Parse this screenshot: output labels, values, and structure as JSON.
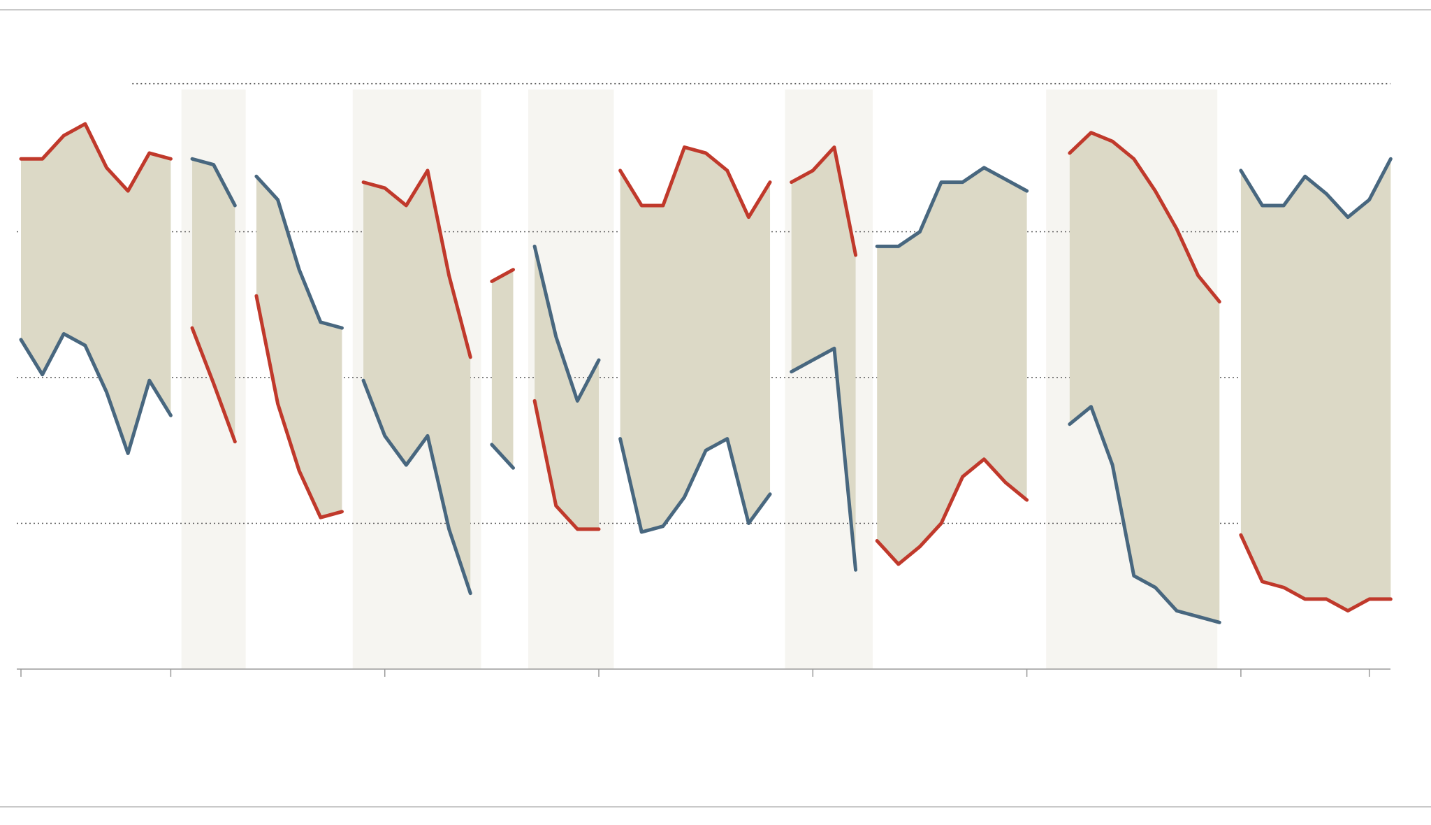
{
  "chart_data": {
    "type": "line",
    "grid": true,
    "ylim": [
      0,
      100
    ],
    "xlim": [
      0,
      64.5
    ],
    "gridlines_y": [
      25,
      50,
      75
    ],
    "top_gridline": {
      "y": 100.4,
      "x_from": 5.2
    },
    "x_ticks": [
      0,
      7,
      17,
      27,
      37,
      47,
      57,
      63
    ],
    "colors": {
      "red": "#c0392b",
      "blue": "#48677f",
      "fill": "#dcd9c6",
      "band": "#f6f5f1"
    },
    "shaded_bands": [
      [
        7.5,
        10.5
      ],
      [
        15.5,
        21.5
      ],
      [
        23.7,
        27.7
      ],
      [
        35.7,
        39.8
      ],
      [
        47.9,
        55.9
      ]
    ],
    "segments": [
      {
        "x_start": 0,
        "red": [
          87.5,
          87.5,
          91.5,
          93.5,
          86,
          82,
          88.5,
          87.5
        ],
        "blue": [
          56.5,
          50.5,
          57.5,
          55.5,
          47.5,
          37,
          49.5,
          43.5
        ]
      },
      {
        "x_start": 8,
        "red": [
          58.5,
          49,
          39
        ],
        "blue": [
          87.5,
          86.5,
          79.5
        ]
      },
      {
        "x_start": 11,
        "red": [
          64,
          45.5,
          34,
          26,
          27
        ],
        "blue": [
          84.5,
          80.5,
          68.5,
          59.5,
          58.5
        ]
      },
      {
        "x_start": 16,
        "red": [
          83.5,
          82.5,
          79.5,
          85.5,
          67.5,
          53.5
        ],
        "blue": [
          49.5,
          40,
          35,
          40,
          24,
          13
        ]
      },
      {
        "x_start": 22,
        "red": [
          66.5,
          68.5
        ],
        "blue": [
          38.5,
          34.5
        ]
      },
      {
        "x_start": 24,
        "red": [
          46,
          28,
          24,
          24
        ],
        "blue": [
          72.5,
          57,
          46,
          53
        ]
      },
      {
        "x_start": 28,
        "red": [
          85.5,
          79.5,
          79.5,
          89.5,
          88.5,
          85.5,
          77.5,
          83.5
        ],
        "blue": [
          39.5,
          23.5,
          24.5,
          29.5,
          37.5,
          39.5,
          25,
          30
        ]
      },
      {
        "x_start": 36,
        "red": [
          83.5,
          85.5,
          89.5,
          71
        ],
        "blue": [
          51,
          53,
          55,
          17
        ]
      },
      {
        "x_start": 40,
        "red": [
          22,
          18,
          21,
          25,
          33,
          36,
          32,
          29
        ],
        "blue": [
          72.5,
          72.5,
          75,
          83.5,
          83.5,
          86,
          84,
          82
        ]
      },
      {
        "x_start": 49,
        "red": [
          88.5,
          92,
          90.5,
          87.5,
          82,
          75.5,
          67.5,
          63
        ],
        "blue": [
          42,
          45,
          35,
          16,
          14,
          10,
          9,
          8
        ]
      },
      {
        "x_start": 57,
        "red": [
          23,
          15,
          14,
          12,
          12,
          10,
          12,
          12
        ],
        "blue": [
          85.5,
          79.5,
          79.5,
          84.5,
          81.5,
          77.5,
          80.5,
          87.5
        ]
      }
    ]
  }
}
